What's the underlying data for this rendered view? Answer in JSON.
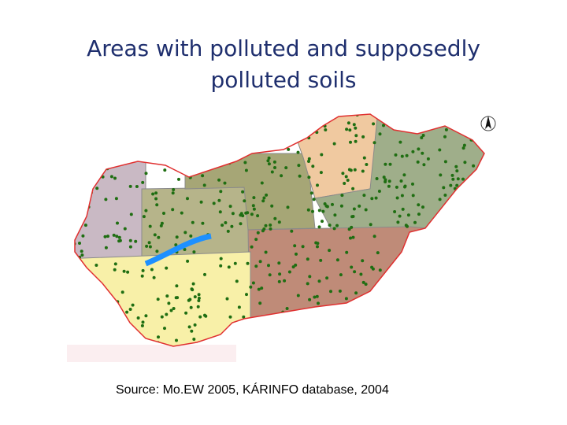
{
  "title": "Areas with polluted and supposedly polluted soils",
  "source": "Source: Mo.EW 2005, KÁRINFO database, 2004"
}
